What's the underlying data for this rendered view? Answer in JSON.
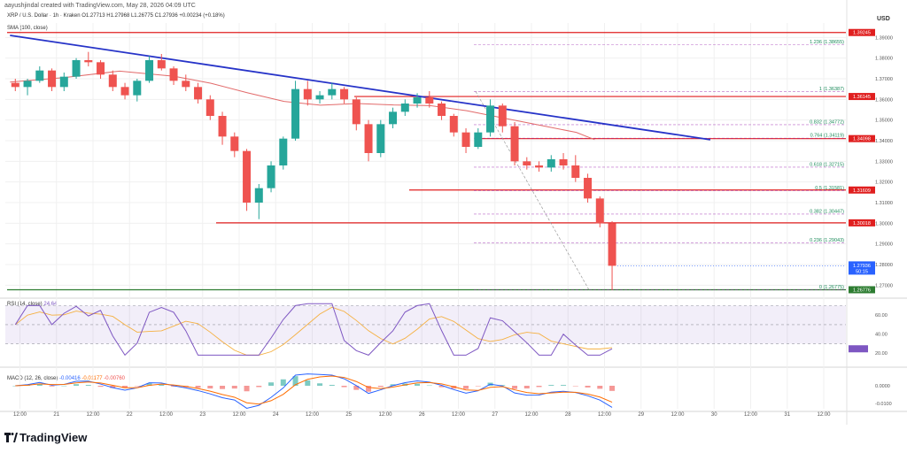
{
  "header": {
    "author_line": "aayushjindal created with TradingView.com, May 28, 2026 04:09 UTC"
  },
  "legend": {
    "symbol_line": "XRP / U.S. Dollar · 1h · Kraken  O1.27713  H1.27968  L1.26775  C1.27936  +0.00234 (+0.18%)",
    "sma_label": "SMA (100, close)",
    "rsi_label": "RSI (14, close)",
    "rsi_value": "24.64",
    "macd_label": "MACD (12, 26, close)",
    "macd_values": [
      "-0.00416",
      "-0.01177",
      "-0.00760"
    ]
  },
  "price_axis": {
    "currency": "USD",
    "ticks": [
      "1.39000",
      "1.38000",
      "1.37000",
      "1.36000",
      "1.35000",
      "1.34000",
      "1.33000",
      "1.32000",
      "1.31000",
      "1.30000",
      "1.29000",
      "1.28000",
      "1.27000"
    ]
  },
  "time_axis": {
    "ticks": [
      "12:00",
      "21",
      "12:00",
      "22",
      "12:00",
      "23",
      "12:00",
      "24",
      "12:00",
      "25",
      "12:00",
      "26",
      "12:00",
      "27",
      "12:00",
      "28",
      "12:00",
      "29",
      "12:00",
      "30",
      "12:00",
      "31",
      "12:00"
    ]
  },
  "rsi_axis": {
    "ticks": [
      "60.00",
      "40.00",
      "20.00"
    ]
  },
  "macd_axis": {
    "ticks": [
      "0.0000",
      "-0.0100"
    ]
  },
  "horizontal_levels": [
    {
      "label": "1.39245",
      "price": 1.3924
    },
    {
      "label": "1.36145",
      "price": 1.3614
    },
    {
      "label": "1.34098",
      "price": 1.341
    },
    {
      "label": "1.31609",
      "price": 1.3161
    },
    {
      "label": "1.30018",
      "price": 1.3002
    },
    {
      "label": "1.26776",
      "price": 1.2678
    }
  ],
  "current_price": {
    "label": "1.27936",
    "countdown": "50:15",
    "price": 1.2794
  },
  "fibonacci": [
    {
      "label": "1.236 (1.38655)",
      "price": 1.38655
    },
    {
      "label": "1 (1.36387)",
      "price": 1.36387
    },
    {
      "label": "0.832 (1.34772)",
      "price": 1.34772
    },
    {
      "label": "0.764 (1.34119)",
      "price": 1.34119
    },
    {
      "label": "0.618 (1.32715)",
      "price": 1.32715
    },
    {
      "label": "0.5 (1.31581)",
      "price": 1.31581
    },
    {
      "label": "0.382 (1.30447)",
      "price": 1.30447
    },
    {
      "label": "0.236 (1.29043)",
      "price": 1.29043
    },
    {
      "label": "0 (1.26775)",
      "price": 1.26775
    }
  ],
  "colors": {
    "up": "#26a69a",
    "down": "#ef5350",
    "trend": "#2633c8",
    "sma": "#e26a6a",
    "level": "#e01f1f",
    "fib": "#9c27b0",
    "rsi": "#7e57c2",
    "rsi_ma": "#f5b041",
    "support": "#2e7d32"
  },
  "brand": {
    "name": "TradingView"
  },
  "chart_data": {
    "type": "candlestick",
    "title": "XRP / U.S. Dollar · 1h · Kraken",
    "ylabel": "USD",
    "ylim": [
      1.265,
      1.397
    ],
    "y_scale": "linear",
    "grid": true,
    "series": [
      {
        "name": "SMA (100, close)",
        "points": [
          [
            "May 20 00:00",
            1.3684
          ],
          [
            "May 20 18:00",
            1.3706
          ],
          [
            "May 21 12:00",
            1.3737
          ],
          [
            "May 22 06:00",
            1.3712
          ],
          [
            "May 22 18:00",
            1.3678
          ],
          [
            "May 23 06:00",
            1.3632
          ],
          [
            "May 23 18:00",
            1.359
          ],
          [
            "May 24 06:00",
            1.3572
          ],
          [
            "May 24 18:00",
            1.358
          ],
          [
            "May 25 06:00",
            1.3573
          ],
          [
            "May 25 18:00",
            1.357
          ],
          [
            "May 26 06:00",
            1.3545
          ],
          [
            "May 26 18:00",
            1.351
          ],
          [
            "May 27 06:00",
            1.3475
          ],
          [
            "May 27 18:00",
            1.344
          ],
          [
            "May 28 00:00",
            1.3405
          ]
        ]
      },
      {
        "name": "Trend line",
        "points": [
          [
            "May 20 00:00",
            1.391
          ],
          [
            "May 29 14:00",
            1.3405
          ]
        ]
      }
    ],
    "candles_4h": [
      [
        "May 20 00:00",
        1.368,
        1.37,
        1.364,
        1.366
      ],
      [
        "May 20 04:00",
        1.366,
        1.37,
        1.362,
        1.369
      ],
      [
        "May 20 08:00",
        1.369,
        1.376,
        1.368,
        1.374
      ],
      [
        "May 20 12:00",
        1.374,
        1.375,
        1.364,
        1.366
      ],
      [
        "May 20 16:00",
        1.366,
        1.373,
        1.364,
        1.371
      ],
      [
        "May 20 20:00",
        1.371,
        1.38,
        1.37,
        1.379
      ],
      [
        "May 21 00:00",
        1.379,
        1.383,
        1.376,
        1.378
      ],
      [
        "May 21 04:00",
        1.378,
        1.379,
        1.37,
        1.372
      ],
      [
        "May 21 08:00",
        1.372,
        1.374,
        1.364,
        1.366
      ],
      [
        "May 21 12:00",
        1.366,
        1.368,
        1.36,
        1.362
      ],
      [
        "May 21 16:00",
        1.362,
        1.37,
        1.359,
        1.369
      ],
      [
        "May 21 20:00",
        1.369,
        1.381,
        1.368,
        1.379
      ],
      [
        "May 22 00:00",
        1.379,
        1.382,
        1.374,
        1.375
      ],
      [
        "May 22 04:00",
        1.375,
        1.376,
        1.367,
        1.369
      ],
      [
        "May 22 08:00",
        1.369,
        1.372,
        1.364,
        1.366
      ],
      [
        "May 22 12:00",
        1.366,
        1.368,
        1.358,
        1.36
      ],
      [
        "May 22 16:00",
        1.36,
        1.362,
        1.35,
        1.352
      ],
      [
        "May 22 20:00",
        1.352,
        1.354,
        1.338,
        1.342
      ],
      [
        "May 23 00:00",
        1.342,
        1.344,
        1.332,
        1.335
      ],
      [
        "May 23 04:00",
        1.335,
        1.336,
        1.306,
        1.31
      ],
      [
        "May 23 08:00",
        1.31,
        1.319,
        1.302,
        1.317
      ],
      [
        "May 23 12:00",
        1.317,
        1.33,
        1.315,
        1.328
      ],
      [
        "May 23 16:00",
        1.328,
        1.342,
        1.326,
        1.341
      ],
      [
        "May 23 20:00",
        1.341,
        1.369,
        1.34,
        1.365
      ],
      [
        "May 24 00:00",
        1.365,
        1.369,
        1.357,
        1.36
      ],
      [
        "May 24 04:00",
        1.36,
        1.364,
        1.358,
        1.362
      ],
      [
        "May 24 08:00",
        1.362,
        1.368,
        1.36,
        1.365
      ],
      [
        "May 24 12:00",
        1.365,
        1.366,
        1.358,
        1.36
      ],
      [
        "May 24 16:00",
        1.36,
        1.361,
        1.345,
        1.348
      ],
      [
        "May 24 20:00",
        1.348,
        1.35,
        1.33,
        1.334
      ],
      [
        "May 25 00:00",
        1.334,
        1.35,
        1.332,
        1.348
      ],
      [
        "May 25 04:00",
        1.348,
        1.356,
        1.346,
        1.354
      ],
      [
        "May 25 08:00",
        1.354,
        1.36,
        1.352,
        1.358
      ],
      [
        "May 25 12:00",
        1.358,
        1.363,
        1.356,
        1.361
      ],
      [
        "May 25 16:00",
        1.361,
        1.364,
        1.356,
        1.358
      ],
      [
        "May 25 20:00",
        1.358,
        1.359,
        1.35,
        1.352
      ],
      [
        "May 26 00:00",
        1.352,
        1.353,
        1.342,
        1.344
      ],
      [
        "May 26 04:00",
        1.344,
        1.346,
        1.334,
        1.337
      ],
      [
        "May 26 08:00",
        1.337,
        1.346,
        1.336,
        1.344
      ],
      [
        "May 26 12:00",
        1.344,
        1.36,
        1.342,
        1.357
      ],
      [
        "May 26 16:00",
        1.357,
        1.358,
        1.344,
        1.347
      ],
      [
        "May 26 20:00",
        1.347,
        1.349,
        1.328,
        1.33
      ],
      [
        "May 27 00:00",
        1.33,
        1.332,
        1.326,
        1.328
      ],
      [
        "May 27 04:00",
        1.328,
        1.33,
        1.325,
        1.327
      ],
      [
        "May 27 08:00",
        1.327,
        1.333,
        1.325,
        1.331
      ],
      [
        "May 27 12:00",
        1.331,
        1.334,
        1.326,
        1.328
      ],
      [
        "May 27 16:00",
        1.328,
        1.333,
        1.32,
        1.322
      ],
      [
        "May 27 20:00",
        1.322,
        1.324,
        1.31,
        1.312
      ],
      [
        "May 28 00:00",
        1.312,
        1.313,
        1.298,
        1.3
      ],
      [
        "May 28 04:00",
        1.3,
        1.301,
        1.2677,
        1.2794
      ]
    ],
    "rsi": {
      "ylim": [
        10,
        75
      ],
      "band": [
        30,
        70
      ],
      "mid": 50
    },
    "macd": {
      "ylim": [
        -0.013,
        0.009
      ]
    }
  }
}
